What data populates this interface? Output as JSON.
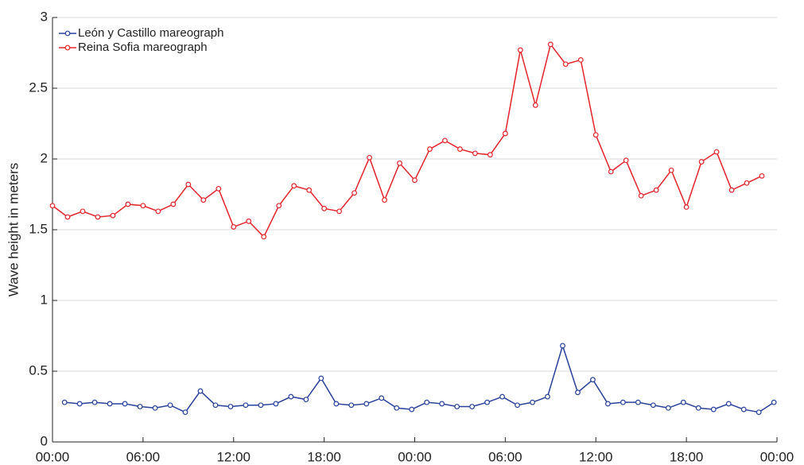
{
  "chart_data": {
    "type": "line",
    "ylabel": "Wave height in meters",
    "xlim": [
      0,
      48
    ],
    "xticks": [
      {
        "value": 0,
        "label": "00:00"
      },
      {
        "value": 6,
        "label": "06:00"
      },
      {
        "value": 12,
        "label": "12:00"
      },
      {
        "value": 18,
        "label": "18:00"
      },
      {
        "value": 24,
        "label": "00:00"
      },
      {
        "value": 30,
        "label": "06:00"
      },
      {
        "value": 36,
        "label": "12:00"
      },
      {
        "value": 42,
        "label": "18:00"
      },
      {
        "value": 48,
        "label": "00:00"
      }
    ],
    "ylim": [
      0,
      3
    ],
    "yticks": [
      0,
      0.5,
      1,
      1.5,
      2,
      2.5,
      3
    ],
    "grid": true,
    "legend": "upper left",
    "series": [
      {
        "name": "León y Castillo mareograph",
        "color": "#27409a",
        "x": [
          0.8,
          1.8,
          2.8,
          3.8,
          4.8,
          5.8,
          6.8,
          7.8,
          8.8,
          9.8,
          10.8,
          11.8,
          12.8,
          13.8,
          14.8,
          15.8,
          16.8,
          17.8,
          18.8,
          19.8,
          20.8,
          21.8,
          22.8,
          23.8,
          24.8,
          25.8,
          26.8,
          27.8,
          28.8,
          29.8,
          30.8,
          31.8,
          32.8,
          33.8,
          34.8,
          35.8,
          36.8,
          37.8,
          38.8,
          39.8,
          40.8,
          41.8,
          42.8,
          43.8,
          44.8,
          45.8,
          46.8,
          47.8
        ],
        "values": [
          0.28,
          0.27,
          0.28,
          0.27,
          0.27,
          0.25,
          0.24,
          0.26,
          0.21,
          0.36,
          0.26,
          0.25,
          0.26,
          0.26,
          0.27,
          0.32,
          0.3,
          0.45,
          0.27,
          0.26,
          0.27,
          0.31,
          0.24,
          0.23,
          0.28,
          0.27,
          0.25,
          0.25,
          0.28,
          0.32,
          0.26,
          0.28,
          0.32,
          0.68,
          0.35,
          0.44,
          0.27,
          0.28,
          0.28,
          0.26,
          0.24,
          0.28,
          0.24,
          0.23,
          0.27,
          0.23,
          0.21,
          0.28
        ]
      },
      {
        "name": "Reina Sofia mareograph",
        "color": "#e4232a",
        "x": [
          0,
          1,
          2,
          3,
          4,
          5,
          6,
          7,
          8,
          9,
          10,
          11,
          12,
          13,
          14,
          15,
          16,
          17,
          18,
          19,
          20,
          21,
          22,
          23,
          24,
          25,
          26,
          27,
          28,
          29,
          30,
          31,
          32,
          33,
          34,
          35,
          36,
          37,
          38,
          39,
          40,
          41,
          42,
          43,
          44,
          45,
          46,
          47
        ],
        "values": [
          1.67,
          1.59,
          1.63,
          1.59,
          1.6,
          1.68,
          1.67,
          1.63,
          1.68,
          1.82,
          1.71,
          1.79,
          1.52,
          1.56,
          1.45,
          1.67,
          1.81,
          1.78,
          1.65,
          1.63,
          1.76,
          2.01,
          1.71,
          1.97,
          1.85,
          2.07,
          2.13,
          2.07,
          2.04,
          2.03,
          2.18,
          2.77,
          2.38,
          2.81,
          2.67,
          2.7,
          2.17,
          1.91,
          1.99,
          1.74,
          1.78,
          1.92,
          1.66,
          1.98,
          2.05,
          1.78,
          1.83,
          1.88
        ]
      }
    ]
  }
}
